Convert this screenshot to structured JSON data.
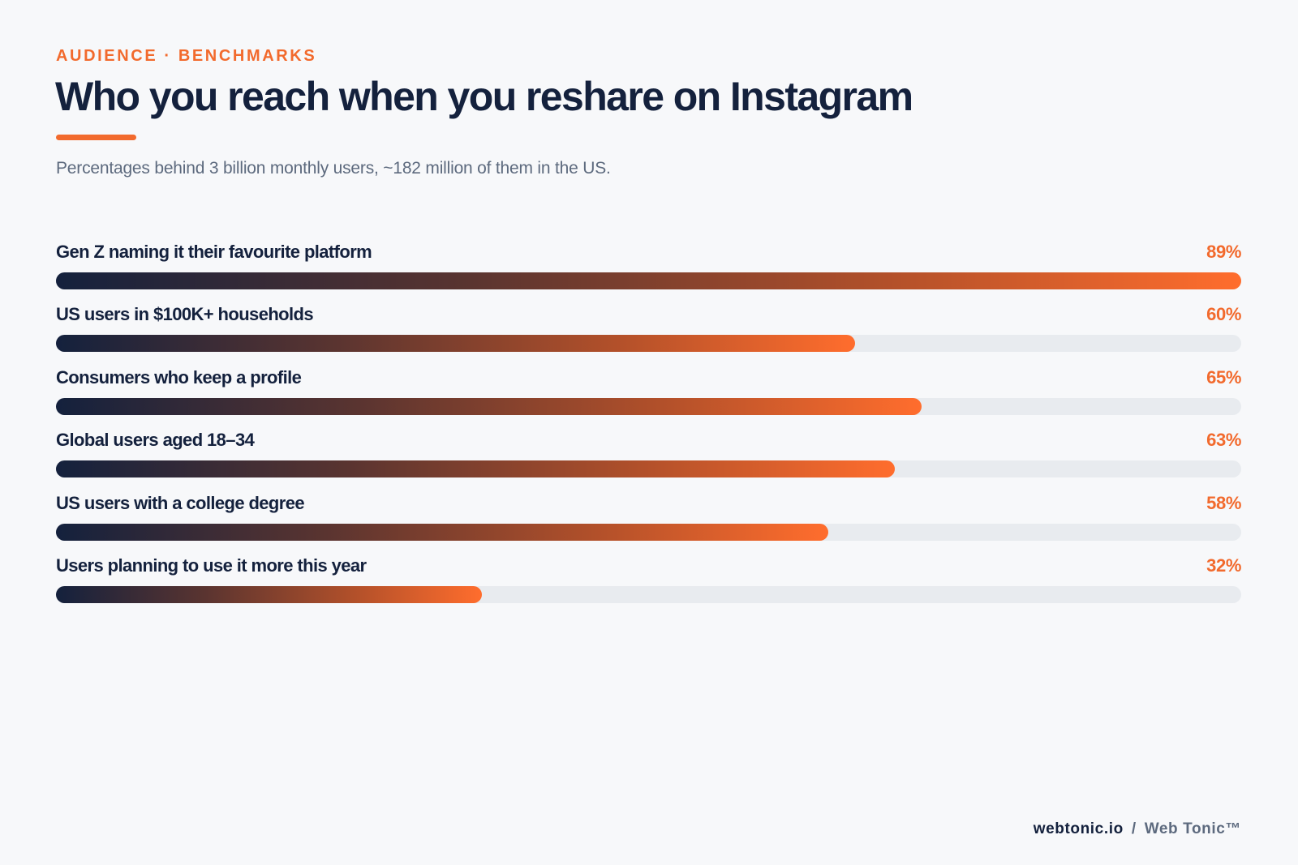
{
  "header": {
    "eyebrow": "AUDIENCE · BENCHMARKS",
    "title": "Who you reach when you reshare on Instagram",
    "subtitle": "Percentages behind 3 billion monthly users, ~182 million of them in the US."
  },
  "colors": {
    "accent": "#f26a2d",
    "navy": "#14213d",
    "track": "#e8ebef",
    "background": "#f7f8fa"
  },
  "chart_data": {
    "type": "bar",
    "orientation": "horizontal",
    "categories": [
      "Gen Z naming it their favourite platform",
      "US users in $100K+ households",
      "Consumers who keep a profile",
      "Global users aged 18–34",
      "US users with a college degree",
      "Users planning to use it more this year"
    ],
    "values": [
      89,
      60,
      65,
      63,
      58,
      32
    ],
    "value_labels": [
      "89%",
      "60%",
      "65%",
      "63%",
      "58%",
      "32%"
    ],
    "unit": "%",
    "bar_max": 89,
    "title": "Who you reach when you reshare on Instagram",
    "xlabel": "",
    "ylabel": ""
  },
  "footer": {
    "site": "webtonic.io",
    "separator": "/",
    "brand": "Web Tonic™"
  }
}
